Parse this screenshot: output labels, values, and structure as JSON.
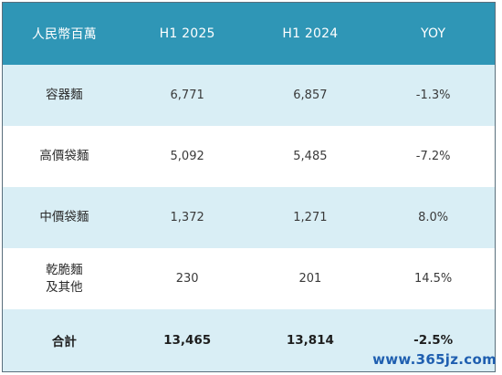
{
  "chart_data": {
    "type": "table",
    "columns": [
      "人民幣百萬",
      "H1 2025",
      "H1 2024",
      "YOY"
    ],
    "rows": [
      {
        "category": "容器麵",
        "h1_2025": "6,771",
        "h1_2024": "6,857",
        "yoy": "-1.3%"
      },
      {
        "category": "高價袋麵",
        "h1_2025": "5,092",
        "h1_2024": "5,485",
        "yoy": "-7.2%"
      },
      {
        "category": "中價袋麵",
        "h1_2025": "1,372",
        "h1_2024": "1,271",
        "yoy": "8.0%"
      },
      {
        "category": "乾脆麵\n及其他",
        "h1_2025": "230",
        "h1_2024": "201",
        "yoy": "14.5%"
      }
    ],
    "total": {
      "category": "合計",
      "h1_2025": "13,465",
      "h1_2024": "13,814",
      "yoy": "-2.5%"
    }
  },
  "watermark": "www.365jz.com",
  "colors": {
    "header_bg": "#2f96b6",
    "stripe_bg": "#d9eef5",
    "watermark": "#1f5fb0"
  }
}
